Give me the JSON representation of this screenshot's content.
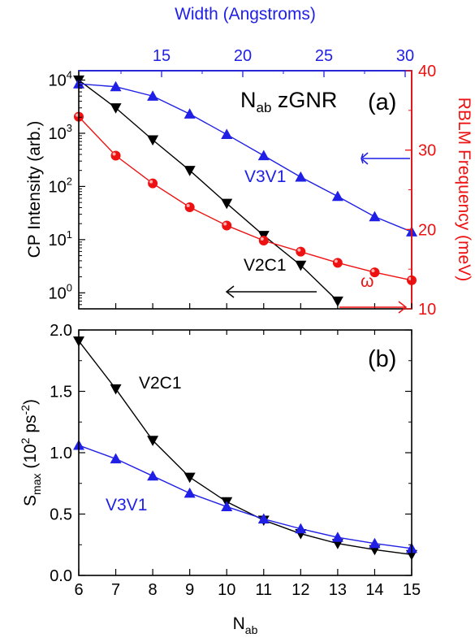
{
  "colors": {
    "black": "#000000",
    "blue": "#1f1fe6",
    "red": "#ee1111"
  },
  "chart_data": [
    {
      "panel_label": "(a)",
      "type": "line",
      "annotation_title": {
        "main": "N",
        "sub": "ab",
        "rest": " zGNR"
      },
      "x": [
        6,
        7,
        8,
        9,
        10,
        11,
        12,
        13,
        14,
        15
      ],
      "xlim": [
        6,
        15
      ],
      "ylabel_left": "CP Intensity (arb.)",
      "ylim_left": [
        0.5,
        15000
      ],
      "yscale_left": "log",
      "left_ticks": [
        {
          "base": "10",
          "exp": "0"
        },
        {
          "base": "10",
          "exp": "1"
        },
        {
          "base": "10",
          "exp": "2"
        },
        {
          "base": "10",
          "exp": "3"
        },
        {
          "base": "10",
          "exp": "4"
        }
      ],
      "ylabel_right": "RBLM Frequency (meV)",
      "ylim_right": [
        10,
        40
      ],
      "right_ticks": [
        "10",
        "20",
        "30",
        "40"
      ],
      "top_axis_label": "Width (Angstroms)",
      "top_ticks": [
        "15",
        "20",
        "25",
        "30"
      ],
      "top_tick_values": [
        15,
        20,
        25,
        30
      ],
      "top_axis_range": [
        9.9,
        30.4
      ],
      "series": [
        {
          "name": "V2C1",
          "axis": "left",
          "marker": "triangle-down",
          "color": "#000000",
          "x": [
            6,
            7,
            8,
            9,
            10,
            11,
            12,
            13
          ],
          "values": [
            10000,
            3000,
            750,
            200,
            48,
            12,
            3.3,
            0.7
          ]
        },
        {
          "name": "V3V1",
          "axis": "left",
          "marker": "triangle-up",
          "color": "#1f1fe6",
          "x": [
            6,
            7,
            8,
            9,
            10,
            11,
            12,
            13,
            14,
            15
          ],
          "values": [
            8500,
            7500,
            5000,
            2300,
            950,
            380,
            150,
            65,
            27,
            14
          ]
        },
        {
          "name": "ω",
          "axis": "right",
          "marker": "circle",
          "color": "#ee1111",
          "x": [
            6,
            7,
            8,
            9,
            10,
            11,
            12,
            13,
            14,
            15
          ],
          "values": [
            34.2,
            29.3,
            25.8,
            22.8,
            20.5,
            18.6,
            17.2,
            15.8,
            14.6,
            13.6
          ]
        }
      ],
      "annotations": {
        "v3v1": "V3V1",
        "v2c1": "V2C1",
        "omega": "ω"
      }
    },
    {
      "panel_label": "(b)",
      "type": "line",
      "x": [
        6,
        7,
        8,
        9,
        10,
        11,
        12,
        13,
        14,
        15
      ],
      "xlim": [
        6,
        15
      ],
      "xticks": [
        "6",
        "7",
        "8",
        "9",
        "10",
        "11",
        "12",
        "13",
        "14",
        "15"
      ],
      "xlabel": {
        "main": "N",
        "sub": "ab"
      },
      "ylabel": {
        "main": "S",
        "sub": "max",
        "unit_open": " (10",
        "unit_sup": "2",
        "unit_mid": " ps",
        "unit_sup2": "-2",
        "unit_close": ")"
      },
      "ylim": [
        0,
        2.0
      ],
      "yticks": [
        "0.0",
        "0.5",
        "1.0",
        "1.5",
        "2.0"
      ],
      "series": [
        {
          "name": "V2C1",
          "marker": "triangle-down",
          "color": "#000000",
          "values": [
            1.91,
            1.52,
            1.1,
            0.8,
            0.6,
            0.45,
            0.34,
            0.26,
            0.21,
            0.17
          ]
        },
        {
          "name": "V3V1",
          "marker": "triangle-up",
          "color": "#1f1fe6",
          "values": [
            1.06,
            0.95,
            0.81,
            0.67,
            0.56,
            0.46,
            0.38,
            0.31,
            0.26,
            0.22
          ]
        }
      ],
      "annotations": {
        "v2c1": "V2C1",
        "v3v1": "V3V1"
      }
    }
  ]
}
